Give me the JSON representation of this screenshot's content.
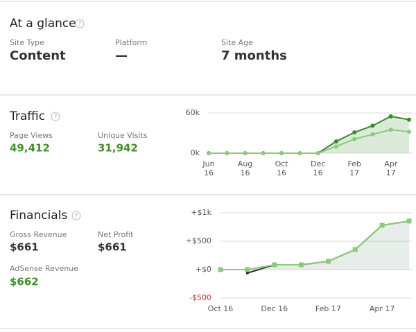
{
  "at_a_glance": {
    "title": "At a glance",
    "fields": [
      {
        "label": "Site Type",
        "value": "Content"
      },
      {
        "label": "Platform",
        "value": "—"
      },
      {
        "label": "Site Age",
        "value": "7 months"
      }
    ]
  },
  "traffic": {
    "title": "Traffic",
    "fields": [
      {
        "label": "Page Views",
        "value": "49,412"
      },
      {
        "label": "Unique Visits",
        "value": "31,942"
      }
    ]
  },
  "financials": {
    "title": "Financials",
    "fields": [
      {
        "label": "Gross Revenue",
        "value": "$661"
      },
      {
        "label": "Net Profit",
        "value": "$661"
      },
      {
        "label": "AdSense Revenue",
        "value": "$662"
      }
    ]
  },
  "chart_data": [
    {
      "type": "line",
      "categories": [
        "Jun 16",
        null,
        "Aug 16",
        null,
        "Oct 16",
        null,
        "Dec 16",
        null,
        "Feb 17",
        null,
        "Apr 17",
        null
      ],
      "series": [
        {
          "color": "#3a8a2e",
          "marker": "circle",
          "area": true,
          "values": [
            0,
            0,
            0,
            0,
            0,
            0,
            0,
            17600,
            31000,
            41000,
            55000,
            50000
          ]
        },
        {
          "color": "#8dc97c",
          "marker": "circle",
          "area": false,
          "values": [
            0,
            0,
            0,
            0,
            0,
            0,
            0,
            10000,
            21000,
            28000,
            35000,
            32000
          ]
        }
      ],
      "ylim": [
        0,
        60000
      ],
      "yticks": [
        {
          "value": 0,
          "label": "0k"
        },
        {
          "value": 60000,
          "label": "60k"
        }
      ],
      "grid": true
    },
    {
      "type": "line",
      "categories": [
        "Oct 16",
        null,
        "Dec 16",
        null,
        "Feb 17",
        null,
        "Apr 17",
        null
      ],
      "series": [
        {
          "color": "#222222",
          "marker": "circle",
          "area": false,
          "values": [
            null,
            -60,
            85,
            85,
            146,
            354,
            780,
            854
          ]
        },
        {
          "color": "#8dc97c",
          "marker": "square",
          "area": true,
          "values": [
            0,
            0,
            85,
            85,
            146,
            354,
            780,
            854
          ]
        }
      ],
      "ylim": [
        -500,
        1000
      ],
      "yticks": [
        {
          "value": 1000,
          "label": "+$1k"
        },
        {
          "value": 500,
          "label": "+$500"
        },
        {
          "value": 0,
          "label": "+$0"
        },
        {
          "value": -500,
          "label": "-$500"
        }
      ],
      "grid": true
    }
  ]
}
